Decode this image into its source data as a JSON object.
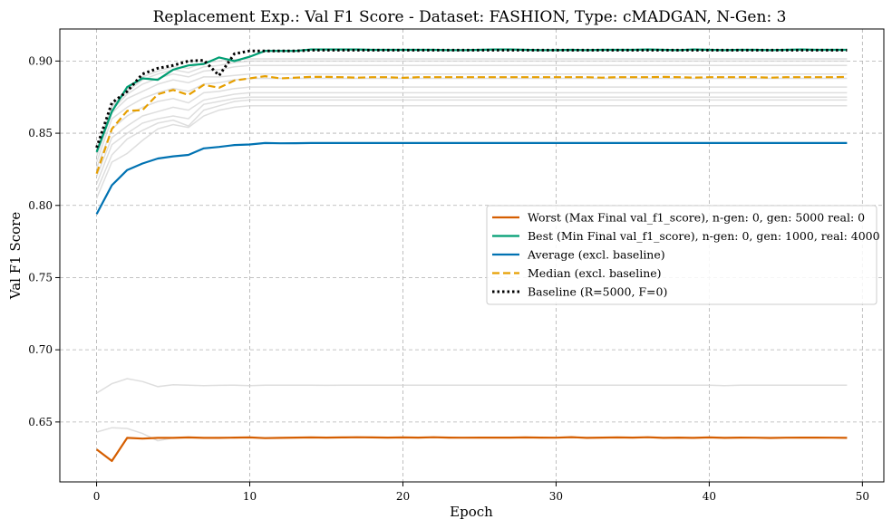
{
  "chart_data": {
    "type": "line",
    "title": "Replacement Exp.: Val F1 Score - Dataset: FASHION, Type: cMADGAN, N-Gen: 3",
    "xlabel": "Epoch",
    "ylabel": "Val F1 Score",
    "xlim": [
      -2.4,
      51.4
    ],
    "ylim": [
      0.6085,
      0.9222
    ],
    "x_ticks": [
      0,
      10,
      20,
      30,
      40,
      50
    ],
    "y_ticks": [
      0.65,
      0.7,
      0.75,
      0.8,
      0.85,
      0.9
    ],
    "grid": true,
    "legend_position": "center-right",
    "x": [
      0,
      1,
      2,
      3,
      4,
      5,
      6,
      7,
      8,
      9,
      10,
      11,
      12,
      13,
      14,
      15,
      16,
      17,
      18,
      19,
      20,
      21,
      22,
      23,
      24,
      25,
      26,
      27,
      28,
      29,
      30,
      31,
      32,
      33,
      34,
      35,
      36,
      37,
      38,
      39,
      40,
      41,
      42,
      43,
      44,
      45,
      46,
      47,
      48,
      49
    ],
    "series": [
      {
        "name": "Worst (Max Final val_f1_score), n-gen: 0, gen: 5000 real: 0",
        "color": "#d55e00",
        "style": "solid",
        "width": 2.2,
        "values": [
          0.631,
          0.623,
          0.639,
          0.6385,
          0.639,
          0.639,
          0.6393,
          0.639,
          0.639,
          0.6392,
          0.6393,
          0.6388,
          0.639,
          0.6392,
          0.6393,
          0.6392,
          0.6393,
          0.6394,
          0.6393,
          0.6392,
          0.6393,
          0.6392,
          0.6394,
          0.6392,
          0.6391,
          0.6392,
          0.6392,
          0.6392,
          0.6393,
          0.6392,
          0.6391,
          0.6395,
          0.639,
          0.6392,
          0.6393,
          0.6392,
          0.6394,
          0.639,
          0.6392,
          0.639,
          0.6393,
          0.639,
          0.6392,
          0.6391,
          0.6389,
          0.6391,
          0.6392,
          0.6392,
          0.6391,
          0.639
        ]
      },
      {
        "name": "Best (Min Final val_f1_score), n-gen: 0, gen: 1000, real: 4000",
        "color": "#009e73",
        "style": "solid",
        "width": 2.2,
        "values": [
          0.837,
          0.865,
          0.882,
          0.888,
          0.887,
          0.894,
          0.897,
          0.898,
          0.9025,
          0.9,
          0.903,
          0.907,
          0.907,
          0.907,
          0.908,
          0.908,
          0.908,
          0.908,
          0.9078,
          0.9078,
          0.9078,
          0.9078,
          0.9078,
          0.9076,
          0.9076,
          0.9078,
          0.908,
          0.908,
          0.9078,
          0.9076,
          0.9076,
          0.9078,
          0.9076,
          0.9078,
          0.9078,
          0.9078,
          0.908,
          0.9078,
          0.9076,
          0.908,
          0.9078,
          0.9076,
          0.9078,
          0.9078,
          0.9076,
          0.9078,
          0.908,
          0.9078,
          0.9078,
          0.9078
        ]
      },
      {
        "name": "Average (excl. baseline)",
        "color": "#0072b2",
        "style": "solid",
        "width": 2.2,
        "values": [
          0.794,
          0.814,
          0.8245,
          0.829,
          0.8325,
          0.834,
          0.835,
          0.8395,
          0.8405,
          0.8418,
          0.8422,
          0.8432,
          0.843,
          0.8431,
          0.8432,
          0.8432,
          0.8432,
          0.8432,
          0.8432,
          0.8432,
          0.8432,
          0.8432,
          0.8432,
          0.8432,
          0.8432,
          0.8432,
          0.8432,
          0.8432,
          0.8432,
          0.8432,
          0.8432,
          0.8432,
          0.8432,
          0.8432,
          0.8432,
          0.8432,
          0.8432,
          0.8432,
          0.8432,
          0.8432,
          0.8432,
          0.8432,
          0.8432,
          0.8432,
          0.8432,
          0.8432,
          0.8432,
          0.8432,
          0.8432,
          0.8432
        ]
      },
      {
        "name": "Median (excl. baseline)",
        "color": "#e69f00",
        "style": "dashed",
        "width": 2.2,
        "values": [
          0.822,
          0.853,
          0.8655,
          0.866,
          0.877,
          0.88,
          0.8765,
          0.8835,
          0.8815,
          0.8865,
          0.888,
          0.8895,
          0.888,
          0.8885,
          0.889,
          0.889,
          0.8888,
          0.8885,
          0.8888,
          0.8888,
          0.8884,
          0.8888,
          0.8888,
          0.8888,
          0.8888,
          0.8888,
          0.8888,
          0.8888,
          0.8888,
          0.8888,
          0.8888,
          0.8888,
          0.8888,
          0.8885,
          0.8888,
          0.8888,
          0.8888,
          0.889,
          0.8888,
          0.8885,
          0.8888,
          0.8888,
          0.8888,
          0.8888,
          0.8885,
          0.8888,
          0.8888,
          0.8888,
          0.8888,
          0.889
        ]
      },
      {
        "name": "Baseline (R=5000, F=0)",
        "color": "#000000",
        "style": "dotted",
        "width": 3,
        "values": [
          0.84,
          0.871,
          0.879,
          0.891,
          0.895,
          0.897,
          0.9,
          0.9005,
          0.89,
          0.905,
          0.907,
          0.907,
          0.907,
          0.907,
          0.9075,
          0.9075,
          0.9075,
          0.9075,
          0.9075,
          0.9075,
          0.9075,
          0.9075,
          0.9075,
          0.9075,
          0.9075,
          0.9075,
          0.9075,
          0.9075,
          0.9075,
          0.9075,
          0.9075,
          0.9075,
          0.9075,
          0.9075,
          0.9075,
          0.9075,
          0.9075,
          0.9075,
          0.9075,
          0.9075,
          0.9075,
          0.9075,
          0.9075,
          0.9075,
          0.9075,
          0.9075,
          0.9075,
          0.9075,
          0.9075,
          0.9075
        ]
      }
    ],
    "background_series": {
      "color": "#d3d3d3",
      "series": [
        {
          "values": [
            0.643,
            0.646,
            0.6455,
            0.642,
            0.637,
            0.639,
            0.639,
            0.639,
            0.6392,
            0.6392,
            0.6392,
            0.6392,
            0.6392,
            0.6392,
            0.6392,
            0.6392,
            0.6392,
            0.6392,
            0.6392,
            0.6392,
            0.6392,
            0.6392,
            0.6392,
            0.6392,
            0.6392,
            0.6392,
            0.6392,
            0.6392,
            0.6392,
            0.6392,
            0.6392,
            0.6392,
            0.6392,
            0.6392,
            0.6392,
            0.6392,
            0.6392,
            0.6392,
            0.6392,
            0.6392,
            0.6392,
            0.6392,
            0.6392,
            0.6392,
            0.6392,
            0.6392,
            0.6392,
            0.6392,
            0.6392,
            0.6392
          ]
        },
        {
          "values": [
            0.67,
            0.6765,
            0.68,
            0.678,
            0.6745,
            0.6758,
            0.6755,
            0.6752,
            0.6754,
            0.6755,
            0.6752,
            0.6755,
            0.6755,
            0.6755,
            0.6755,
            0.6754,
            0.6755,
            0.6755,
            0.6755,
            0.6755,
            0.6755,
            0.6755,
            0.6755,
            0.6755,
            0.6755,
            0.6755,
            0.6755,
            0.6755,
            0.6755,
            0.6755,
            0.6755,
            0.6755,
            0.6755,
            0.6755,
            0.6755,
            0.6755,
            0.6755,
            0.6755,
            0.6755,
            0.6755,
            0.6755,
            0.6752,
            0.6755,
            0.6755,
            0.6755,
            0.6755,
            0.6755,
            0.6755,
            0.6755,
            0.6755
          ]
        },
        {
          "values": [
            0.805,
            0.83,
            0.836,
            0.845,
            0.853,
            0.856,
            0.854,
            0.862,
            0.866,
            0.868,
            0.869,
            0.869,
            0.869,
            0.869,
            0.869,
            0.869,
            0.869,
            0.869,
            0.869,
            0.869,
            0.869,
            0.869,
            0.869,
            0.869,
            0.869,
            0.869,
            0.869,
            0.869,
            0.869,
            0.869,
            0.869,
            0.869,
            0.869,
            0.869,
            0.869,
            0.869,
            0.869,
            0.869,
            0.869,
            0.869,
            0.869,
            0.869,
            0.869,
            0.869,
            0.869,
            0.869,
            0.869,
            0.869,
            0.869,
            0.869
          ]
        },
        {
          "values": [
            0.81,
            0.835,
            0.846,
            0.852,
            0.857,
            0.859,
            0.855,
            0.866,
            0.869,
            0.872,
            0.873,
            0.873,
            0.873,
            0.873,
            0.873,
            0.873,
            0.873,
            0.873,
            0.873,
            0.873,
            0.873,
            0.873,
            0.873,
            0.873,
            0.873,
            0.873,
            0.873,
            0.873,
            0.873,
            0.873,
            0.873,
            0.873,
            0.873,
            0.873,
            0.873,
            0.873,
            0.873,
            0.873,
            0.873,
            0.873,
            0.873,
            0.873,
            0.873,
            0.873,
            0.873,
            0.873,
            0.873,
            0.873,
            0.873,
            0.873
          ]
        },
        {
          "values": [
            0.815,
            0.842,
            0.85,
            0.857,
            0.86,
            0.862,
            0.86,
            0.87,
            0.872,
            0.874,
            0.875,
            0.875,
            0.875,
            0.875,
            0.875,
            0.875,
            0.875,
            0.875,
            0.875,
            0.875,
            0.875,
            0.875,
            0.875,
            0.875,
            0.875,
            0.875,
            0.875,
            0.875,
            0.875,
            0.875,
            0.875,
            0.875,
            0.875,
            0.875,
            0.875,
            0.875,
            0.875,
            0.875,
            0.875,
            0.875,
            0.875,
            0.875,
            0.875,
            0.875,
            0.875,
            0.875,
            0.875,
            0.875,
            0.875,
            0.875
          ]
        },
        {
          "values": [
            0.82,
            0.847,
            0.855,
            0.862,
            0.865,
            0.868,
            0.866,
            0.873,
            0.875,
            0.877,
            0.878,
            0.878,
            0.878,
            0.878,
            0.878,
            0.878,
            0.878,
            0.878,
            0.878,
            0.878,
            0.878,
            0.878,
            0.878,
            0.878,
            0.878,
            0.878,
            0.878,
            0.878,
            0.878,
            0.878,
            0.878,
            0.878,
            0.878,
            0.878,
            0.878,
            0.878,
            0.878,
            0.878,
            0.878,
            0.878,
            0.878,
            0.878,
            0.878,
            0.878,
            0.878,
            0.878,
            0.878,
            0.878,
            0.878,
            0.878
          ]
        },
        {
          "values": [
            0.826,
            0.853,
            0.862,
            0.868,
            0.872,
            0.874,
            0.871,
            0.878,
            0.879,
            0.881,
            0.882,
            0.882,
            0.882,
            0.882,
            0.882,
            0.882,
            0.882,
            0.882,
            0.882,
            0.882,
            0.882,
            0.882,
            0.882,
            0.882,
            0.882,
            0.882,
            0.882,
            0.882,
            0.882,
            0.882,
            0.882,
            0.882,
            0.882,
            0.882,
            0.882,
            0.882,
            0.882,
            0.882,
            0.882,
            0.882,
            0.882,
            0.882,
            0.882,
            0.882,
            0.882,
            0.882,
            0.882,
            0.882,
            0.882,
            0.882
          ]
        },
        {
          "values": [
            0.83,
            0.86,
            0.868,
            0.874,
            0.878,
            0.881,
            0.879,
            0.884,
            0.885,
            0.887,
            0.888,
            0.888,
            0.888,
            0.888,
            0.888,
            0.888,
            0.888,
            0.888,
            0.888,
            0.888,
            0.888,
            0.888,
            0.888,
            0.888,
            0.888,
            0.888,
            0.888,
            0.888,
            0.888,
            0.888,
            0.888,
            0.888,
            0.888,
            0.888,
            0.888,
            0.888,
            0.888,
            0.888,
            0.888,
            0.888,
            0.888,
            0.888,
            0.888,
            0.888,
            0.888,
            0.888,
            0.888,
            0.888,
            0.888,
            0.888
          ]
        },
        {
          "values": [
            0.834,
            0.864,
            0.874,
            0.879,
            0.884,
            0.887,
            0.885,
            0.889,
            0.889,
            0.89,
            0.891,
            0.891,
            0.891,
            0.891,
            0.891,
            0.891,
            0.891,
            0.891,
            0.891,
            0.891,
            0.891,
            0.891,
            0.891,
            0.891,
            0.891,
            0.891,
            0.891,
            0.891,
            0.891,
            0.891,
            0.891,
            0.891,
            0.891,
            0.891,
            0.891,
            0.891,
            0.891,
            0.891,
            0.891,
            0.891,
            0.891,
            0.891,
            0.891,
            0.891,
            0.891,
            0.891,
            0.891,
            0.891,
            0.891,
            0.891
          ]
        },
        {
          "values": [
            0.836,
            0.866,
            0.877,
            0.884,
            0.888,
            0.891,
            0.889,
            0.893,
            0.894,
            0.896,
            0.897,
            0.897,
            0.897,
            0.897,
            0.897,
            0.897,
            0.897,
            0.897,
            0.897,
            0.897,
            0.897,
            0.897,
            0.897,
            0.897,
            0.897,
            0.897,
            0.897,
            0.897,
            0.897,
            0.897,
            0.897,
            0.897,
            0.897,
            0.897,
            0.897,
            0.897,
            0.897,
            0.897,
            0.897,
            0.897,
            0.897,
            0.897,
            0.897,
            0.897,
            0.897,
            0.897,
            0.897,
            0.897,
            0.897,
            0.897
          ]
        },
        {
          "values": [
            0.838,
            0.868,
            0.879,
            0.887,
            0.891,
            0.894,
            0.892,
            0.896,
            0.897,
            0.899,
            0.9,
            0.9,
            0.9,
            0.9,
            0.9,
            0.9,
            0.9,
            0.9,
            0.9,
            0.9,
            0.9,
            0.9,
            0.9,
            0.9,
            0.9,
            0.9,
            0.9,
            0.9,
            0.9,
            0.9,
            0.9,
            0.9,
            0.9,
            0.9,
            0.9,
            0.9,
            0.9,
            0.9,
            0.9,
            0.9,
            0.9,
            0.9,
            0.9,
            0.9,
            0.9,
            0.9,
            0.9,
            0.9,
            0.9,
            0.9
          ]
        },
        {
          "values": [
            0.839,
            0.869,
            0.88,
            0.889,
            0.893,
            0.896,
            0.895,
            0.899,
            0.9,
            0.901,
            0.9015,
            0.9015,
            0.9015,
            0.9015,
            0.9015,
            0.9015,
            0.9015,
            0.9015,
            0.9015,
            0.9015,
            0.9015,
            0.9015,
            0.9015,
            0.9015,
            0.9015,
            0.9015,
            0.9015,
            0.9015,
            0.9015,
            0.9015,
            0.9015,
            0.9015,
            0.9015,
            0.9015,
            0.9015,
            0.9015,
            0.9015,
            0.9015,
            0.9015,
            0.9015,
            0.9015,
            0.9015,
            0.9015,
            0.9015,
            0.9015,
            0.9015,
            0.9015,
            0.9015,
            0.9015,
            0.9015
          ]
        }
      ]
    }
  }
}
